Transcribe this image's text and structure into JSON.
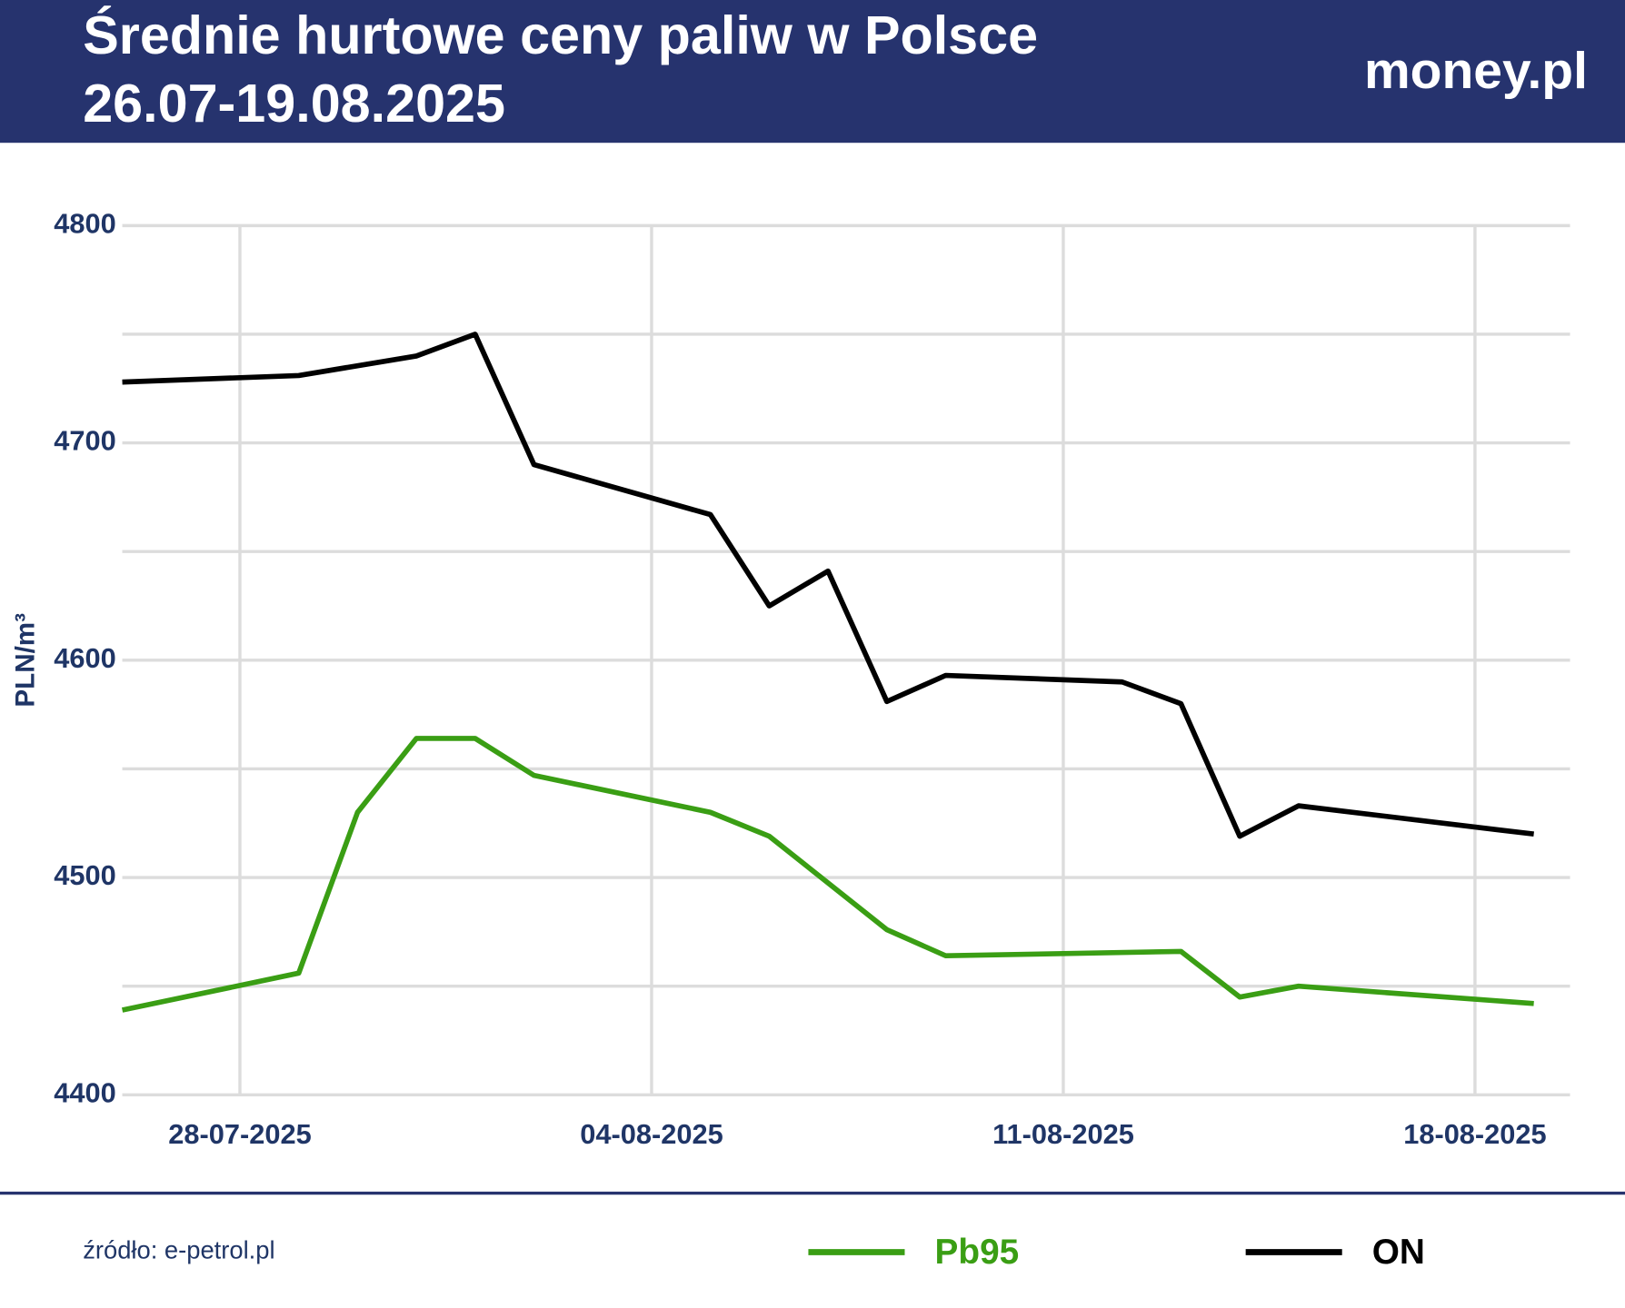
{
  "chart_data": {
    "type": "line",
    "title": "Średnie hurtowe ceny paliw w Polsce",
    "subtitle": "26.07-19.08.2025",
    "logo": "money.pl",
    "source": "źródło: e-petrol.pl",
    "ylabel": "PLN/m³",
    "ylim": [
      4400,
      4800
    ],
    "yticks": [
      4400,
      4500,
      4600,
      4700,
      4800
    ],
    "y_minor_ticks": [
      4450,
      4550,
      4650,
      4750
    ],
    "xlim": [
      "26-07-2025",
      "19-08-2025"
    ],
    "xticks": [
      "28-07-2025",
      "04-08-2025",
      "11-08-2025",
      "18-08-2025"
    ],
    "grid": true,
    "series": [
      {
        "name": "Pb95",
        "color": "#3a9e14",
        "x": [
          "26-07-2025",
          "29-07-2025",
          "30-07-2025",
          "31-07-2025",
          "01-08-2025",
          "02-08-2025",
          "05-08-2025",
          "06-08-2025",
          "08-08-2025",
          "09-08-2025",
          "13-08-2025",
          "14-08-2025",
          "15-08-2025",
          "19-08-2025"
        ],
        "values": [
          4439,
          4456,
          4530,
          4564,
          4564,
          4547,
          4530,
          4519,
          4476,
          4464,
          4466,
          4445,
          4450,
          4442
        ]
      },
      {
        "name": "ON",
        "color": "#000000",
        "x": [
          "26-07-2025",
          "29-07-2025",
          "31-07-2025",
          "01-08-2025",
          "02-08-2025",
          "05-08-2025",
          "06-08-2025",
          "07-08-2025",
          "08-08-2025",
          "09-08-2025",
          "12-08-2025",
          "13-08-2025",
          "14-08-2025",
          "15-08-2025",
          "19-08-2025"
        ],
        "values": [
          4728,
          4731,
          4740,
          4750,
          4690,
          4667,
          4625,
          4641,
          4581,
          4593,
          4590,
          4580,
          4519,
          4533,
          4520
        ]
      }
    ]
  }
}
